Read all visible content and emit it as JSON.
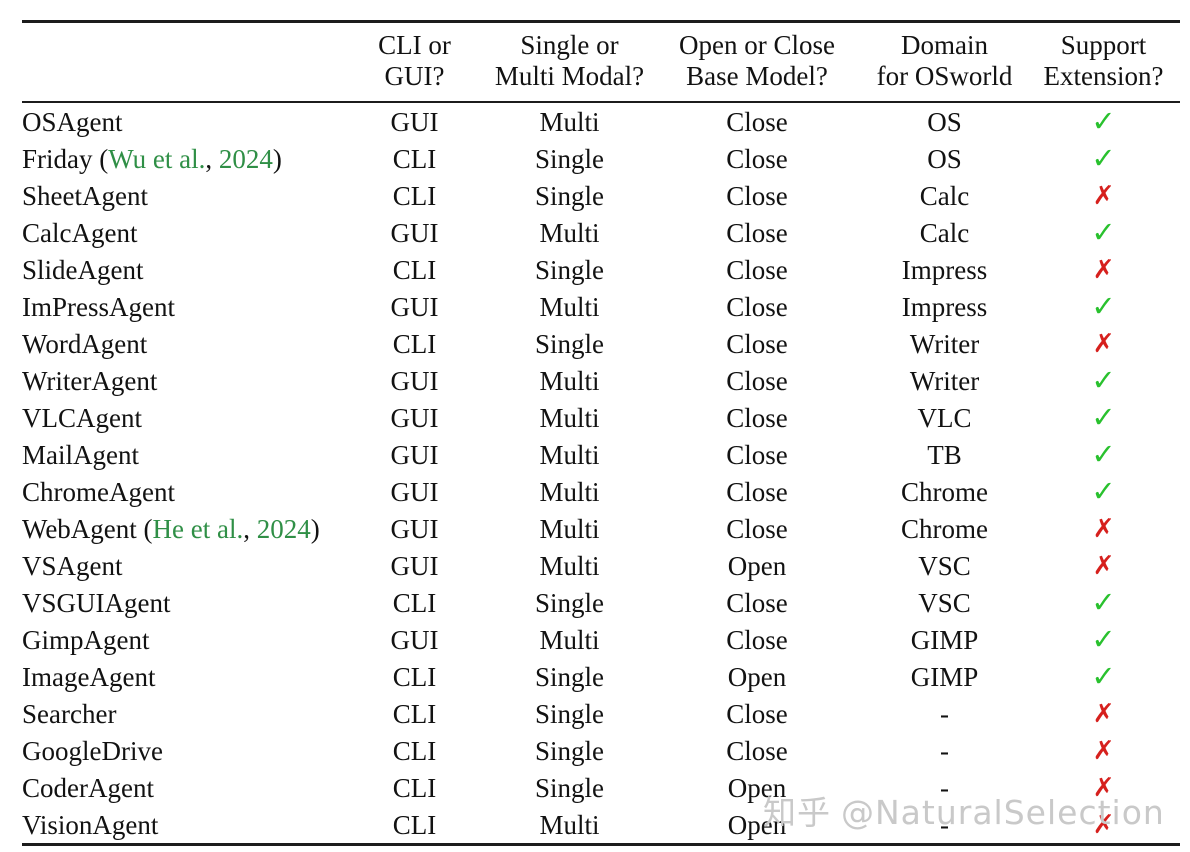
{
  "table": {
    "headers": {
      "agent": "",
      "interface": "CLI or\nGUI?",
      "modal": "Single or\nMulti Modal?",
      "base": "Open or Close\nBase Model?",
      "domain": "Domain\nfor OSworld",
      "support": "Support\nExtension?"
    },
    "marks": {
      "check": "✓",
      "cross": "✗"
    },
    "rows": [
      {
        "name": "OSAgent",
        "iface": "GUI",
        "modal": "Multi",
        "base": "Close",
        "domain": "OS",
        "support": "yes"
      },
      {
        "name": "Friday (",
        "cite": {
          "author": "Wu et al.",
          "sep": ", ",
          "year": "2024",
          "close": ")"
        },
        "iface": "CLI",
        "modal": "Single",
        "base": "Close",
        "domain": "OS",
        "support": "yes"
      },
      {
        "name": "SheetAgent",
        "iface": "CLI",
        "modal": "Single",
        "base": "Close",
        "domain": "Calc",
        "support": "no"
      },
      {
        "name": "CalcAgent",
        "iface": "GUI",
        "modal": "Multi",
        "base": "Close",
        "domain": "Calc",
        "support": "yes"
      },
      {
        "name": "SlideAgent",
        "iface": "CLI",
        "modal": "Single",
        "base": "Close",
        "domain": "Impress",
        "support": "no"
      },
      {
        "name": "ImPressAgent",
        "iface": "GUI",
        "modal": "Multi",
        "base": "Close",
        "domain": "Impress",
        "support": "yes"
      },
      {
        "name": "WordAgent",
        "iface": "CLI",
        "modal": "Single",
        "base": "Close",
        "domain": "Writer",
        "support": "no"
      },
      {
        "name": "WriterAgent",
        "iface": "GUI",
        "modal": "Multi",
        "base": "Close",
        "domain": "Writer",
        "support": "yes"
      },
      {
        "name": "VLCAgent",
        "iface": "GUI",
        "modal": "Multi",
        "base": "Close",
        "domain": "VLC",
        "support": "yes"
      },
      {
        "name": "MailAgent",
        "iface": "GUI",
        "modal": "Multi",
        "base": "Close",
        "domain": "TB",
        "support": "yes"
      },
      {
        "name": "ChromeAgent",
        "iface": "GUI",
        "modal": "Multi",
        "base": "Close",
        "domain": "Chrome",
        "support": "yes"
      },
      {
        "name": "WebAgent (",
        "cite": {
          "author": "He et al.",
          "sep": ", ",
          "year": "2024",
          "close": ")"
        },
        "iface": "GUI",
        "modal": "Multi",
        "base": "Close",
        "domain": "Chrome",
        "support": "no"
      },
      {
        "name": "VSAgent",
        "iface": "GUI",
        "modal": "Multi",
        "base": "Open",
        "domain": "VSC",
        "support": "no"
      },
      {
        "name": "VSGUIAgent",
        "iface": "CLI",
        "modal": "Single",
        "base": "Close",
        "domain": "VSC",
        "support": "yes"
      },
      {
        "name": "GimpAgent",
        "iface": "GUI",
        "modal": "Multi",
        "base": "Close",
        "domain": "GIMP",
        "support": "yes"
      },
      {
        "name": "ImageAgent",
        "iface": "CLI",
        "modal": "Single",
        "base": "Open",
        "domain": "GIMP",
        "support": "yes"
      },
      {
        "name": "Searcher",
        "iface": "CLI",
        "modal": "Single",
        "base": "Close",
        "domain": "-",
        "support": "no"
      },
      {
        "name": "GoogleDrive",
        "iface": "CLI",
        "modal": "Single",
        "base": "Close",
        "domain": "-",
        "support": "no"
      },
      {
        "name": "CoderAgent",
        "iface": "CLI",
        "modal": "Single",
        "base": "Open",
        "domain": "-",
        "support": "no"
      },
      {
        "name": "VisionAgent",
        "iface": "CLI",
        "modal": "Multi",
        "base": "Open",
        "domain": "-",
        "support": "no"
      }
    ]
  },
  "watermark": {
    "logo": "知乎",
    "handle": "@NaturalSelection"
  },
  "colors": {
    "check": "#29c12e",
    "cross": "#d6201d",
    "citation": "#2f8f46",
    "rule": "#1c1c1c",
    "text": "#121212",
    "watermark": "#c9c9c9",
    "background": "#ffffff"
  }
}
